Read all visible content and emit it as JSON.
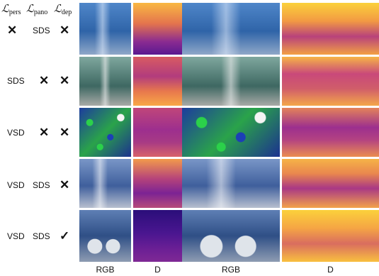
{
  "header": {
    "loss_symbol": "ℒ",
    "loss_subscripts": [
      "pers",
      "pano",
      "dep"
    ]
  },
  "rows": [
    {
      "pers": "✕",
      "pano": "SDS",
      "dep": "✕"
    },
    {
      "pers": "SDS",
      "pano": "✕",
      "dep": "✕"
    },
    {
      "pers": "VSD",
      "pano": "✕",
      "dep": "✕"
    },
    {
      "pers": "VSD",
      "pano": "SDS",
      "dep": "✕"
    },
    {
      "pers": "VSD",
      "pano": "SDS",
      "dep": "✓"
    }
  ],
  "footer": [
    "RGB",
    "D",
    "RGB",
    "D"
  ],
  "colors": {
    "depth_colormap": "plasma"
  }
}
